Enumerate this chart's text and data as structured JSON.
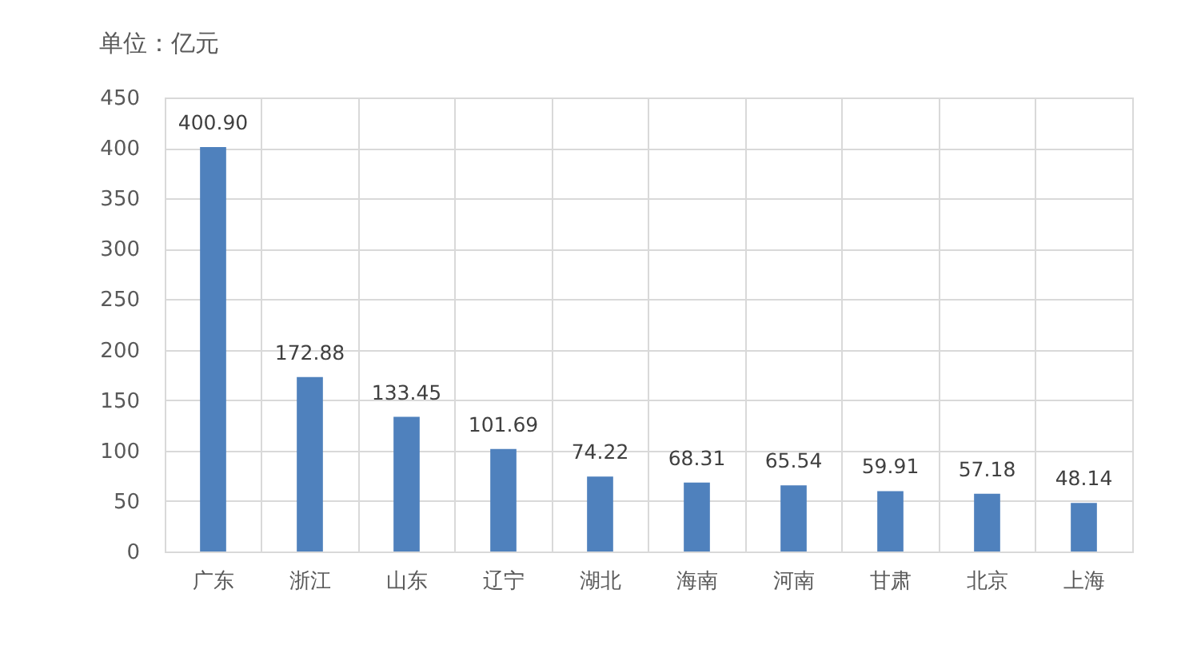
{
  "chart_data": {
    "type": "bar",
    "title": "单位：亿元",
    "categories": [
      "广东",
      "浙江",
      "山东",
      "辽宁",
      "湖北",
      "海南",
      "河南",
      "甘肃",
      "北京",
      "上海"
    ],
    "values": [
      400.9,
      172.88,
      133.45,
      101.69,
      74.22,
      68.31,
      65.54,
      59.91,
      57.18,
      48.14
    ],
    "value_labels": [
      "400.90",
      "172.88",
      "133.45",
      "101.69",
      "74.22",
      "68.31",
      "65.54",
      "59.91",
      "57.18",
      "48.14"
    ],
    "color": "#4f81bd",
    "ylim": [
      0,
      450
    ],
    "yticks": [
      0,
      50,
      100,
      150,
      200,
      250,
      300,
      350,
      400,
      450
    ],
    "grid": true
  }
}
